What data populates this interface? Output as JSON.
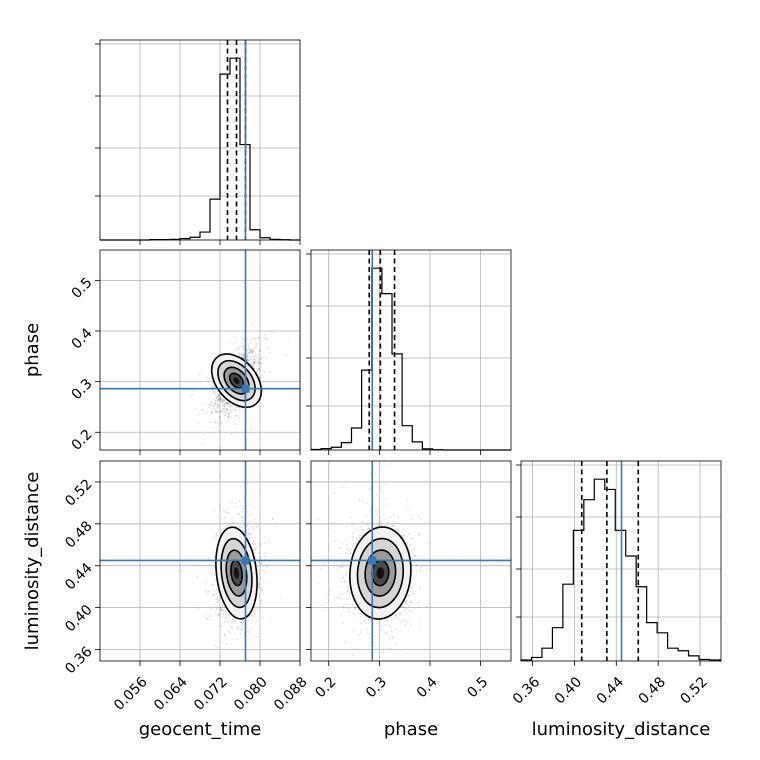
{
  "chart_data": {
    "type": "corner",
    "parameters": [
      {
        "id": "geocent_time",
        "label": "geocent_time",
        "range": [
          0.048,
          0.088
        ],
        "ticks": [
          0.056,
          0.064,
          0.072,
          0.08,
          0.088
        ],
        "tick_labels": [
          "0.056",
          "0.064",
          "0.072",
          "0.080",
          "0.088"
        ],
        "truth": 0.0771,
        "quantiles": [
          0.0735,
          0.0753,
          0.0771
        ],
        "hist": {
          "edges": [
            0.048,
            0.05,
            0.052,
            0.054,
            0.056,
            0.058,
            0.06,
            0.062,
            0.064,
            0.066,
            0.068,
            0.07,
            0.072,
            0.074,
            0.076,
            0.078,
            0.08,
            0.082,
            0.084,
            0.086,
            0.088
          ],
          "counts": [
            0,
            0,
            0,
            0,
            0,
            2,
            2,
            3,
            6,
            12,
            35,
            180,
            730,
            800,
            420,
            45,
            10,
            3,
            1,
            0
          ]
        }
      },
      {
        "id": "phase",
        "label": "phase",
        "range": [
          0.165,
          0.56
        ],
        "ticks": [
          0.2,
          0.3,
          0.4,
          0.5
        ],
        "tick_labels": [
          "0.2",
          "0.3",
          "0.4",
          "0.5"
        ],
        "truth": 0.286,
        "quantiles": [
          0.28,
          0.302,
          0.33
        ],
        "hist": {
          "edges": [
            0.165,
            0.185,
            0.205,
            0.225,
            0.245,
            0.265,
            0.285,
            0.305,
            0.325,
            0.345,
            0.365,
            0.385,
            0.405,
            0.425,
            0.445,
            0.465,
            0.485,
            0.505,
            0.525,
            0.545,
            0.56
          ],
          "counts": [
            2,
            6,
            12,
            32,
            95,
            345,
            785,
            675,
            415,
            105,
            35,
            5,
            1,
            0,
            0,
            0,
            0,
            0,
            0,
            0
          ]
        }
      },
      {
        "id": "luminosity_distance",
        "label": "luminosity_distance",
        "range": [
          0.349,
          0.54
        ],
        "ticks": [
          0.36,
          0.4,
          0.44,
          0.48,
          0.52
        ],
        "tick_labels": [
          "0.36",
          "0.40",
          "0.44",
          "0.48",
          "0.52"
        ],
        "truth": 0.445,
        "quantiles": [
          0.407,
          0.431,
          0.461
        ],
        "hist": {
          "edges": [
            0.349,
            0.359,
            0.369,
            0.379,
            0.389,
            0.399,
            0.409,
            0.419,
            0.429,
            0.439,
            0.449,
            0.459,
            0.469,
            0.479,
            0.489,
            0.499,
            0.509,
            0.519,
            0.529,
            0.539,
            0.54
          ],
          "counts": [
            2,
            7,
            25,
            65,
            150,
            255,
            315,
            355,
            335,
            255,
            205,
            145,
            75,
            55,
            25,
            20,
            10,
            3,
            2,
            0
          ]
        }
      }
    ],
    "pairs": [
      {
        "x": "geocent_time",
        "y": "phase",
        "center": [
          0.0753,
          0.302
        ],
        "sigma": [
          0.002,
          0.03
        ],
        "rho": 0.55
      },
      {
        "x": "geocent_time",
        "y": "luminosity_distance",
        "center": [
          0.0753,
          0.433
        ],
        "sigma": [
          0.002,
          0.022
        ],
        "rho": 0.05
      },
      {
        "x": "phase",
        "y": "luminosity_distance",
        "center": [
          0.302,
          0.433
        ],
        "sigma": [
          0.03,
          0.022
        ],
        "rho": -0.05
      }
    ],
    "grid": true
  }
}
